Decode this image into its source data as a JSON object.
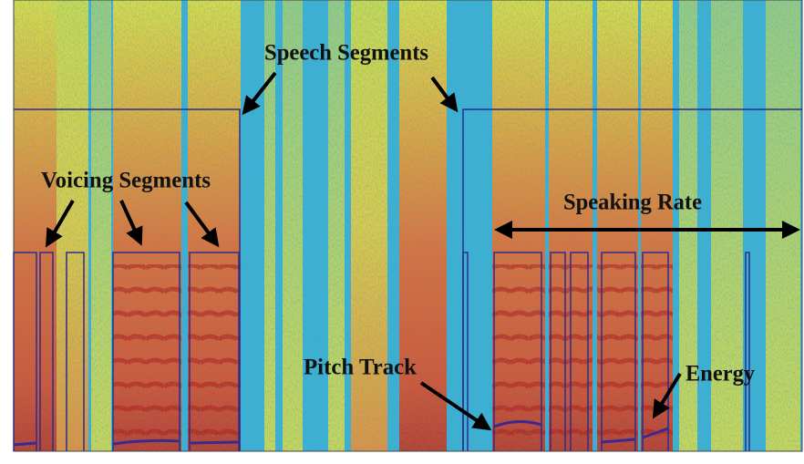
{
  "annotations": {
    "speech_segments": "Speech Segments",
    "voicing_segments": "Voicing Segments",
    "speaking_rate": "Speaking Rate",
    "pitch_track": "Pitch Track",
    "energy": "Energy"
  }
}
